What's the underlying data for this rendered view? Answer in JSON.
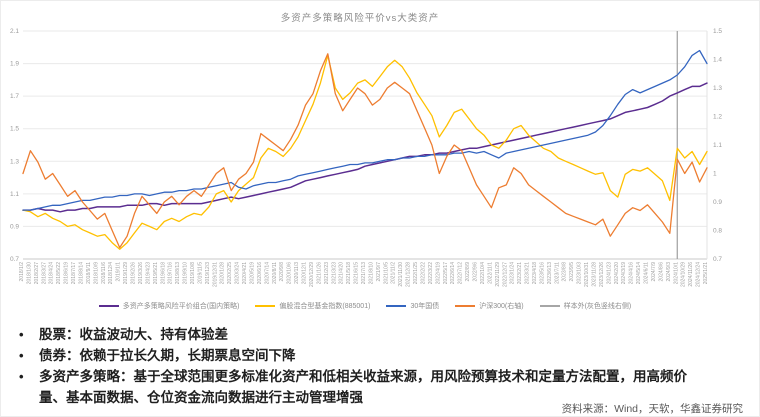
{
  "chart": {
    "title": "多资产多策略风险平价vs大类资产",
    "left_axis_ticks": [
      "2.1",
      "1.9",
      "1.7",
      "1.5",
      "1.3",
      "1.1",
      "0.9",
      "0.7"
    ],
    "right_axis_ticks": [
      "1.5",
      "1.4",
      "1.3",
      "1.2",
      "1.1",
      "1",
      "0.9",
      "0.8",
      "0.7"
    ],
    "legend": [
      {
        "label": "多资产多策略风险平价组合(国内策略)",
        "color": "#5B2D90"
      },
      {
        "label": "偏股混合型基金指数(885001)",
        "color": "#FFC000"
      },
      {
        "label": "30年国债",
        "color": "#3465C0"
      },
      {
        "label": "沪深300(右轴)",
        "color": "#ED7D31"
      },
      {
        "label": "样本外(灰色竖线右侧)",
        "color": "#A6A6A6"
      }
    ]
  },
  "chart_data": {
    "type": "line",
    "title": "多资产多策略风险平价vs大类资产",
    "x_axis": {
      "start": {
        "year": 2018,
        "month": 1,
        "day": 2
      },
      "step_days": 28,
      "count": 93
    },
    "left_axis": {
      "min": 0.7,
      "max": 2.1,
      "tick_step": 0.2
    },
    "right_axis": {
      "min": 0.7,
      "max": 1.5,
      "tick_step": 0.1
    },
    "out_of_sample_index": 88,
    "out_of_sample_color": "#9e9e9e",
    "grid": true,
    "series": [
      {
        "name": "多资产多策略风险平价组合(国内策略)",
        "axis": "left",
        "color": "#5B2D90",
        "width": 1.5,
        "values": [
          1.0,
          1.0,
          1.01,
          1.0,
          1.0,
          0.99,
          1.0,
          1.0,
          1.01,
          1.01,
          1.02,
          1.02,
          1.02,
          1.02,
          1.03,
          1.03,
          1.03,
          1.04,
          1.04,
          1.03,
          1.04,
          1.04,
          1.04,
          1.04,
          1.04,
          1.05,
          1.06,
          1.07,
          1.08,
          1.07,
          1.08,
          1.09,
          1.1,
          1.11,
          1.12,
          1.13,
          1.14,
          1.16,
          1.18,
          1.19,
          1.2,
          1.21,
          1.22,
          1.23,
          1.24,
          1.25,
          1.27,
          1.28,
          1.29,
          1.3,
          1.31,
          1.32,
          1.33,
          1.33,
          1.34,
          1.34,
          1.35,
          1.35,
          1.36,
          1.37,
          1.38,
          1.38,
          1.39,
          1.4,
          1.41,
          1.42,
          1.43,
          1.44,
          1.45,
          1.46,
          1.47,
          1.48,
          1.49,
          1.5,
          1.51,
          1.52,
          1.53,
          1.54,
          1.55,
          1.56,
          1.58,
          1.6,
          1.61,
          1.62,
          1.63,
          1.65,
          1.67,
          1.7,
          1.72,
          1.74,
          1.76,
          1.76,
          1.78
        ]
      },
      {
        "name": "偏股混合型基金指数(885001)",
        "axis": "left",
        "color": "#FFC000",
        "width": 1.3,
        "values": [
          1.0,
          0.99,
          0.96,
          0.98,
          0.95,
          0.93,
          0.9,
          0.91,
          0.88,
          0.86,
          0.84,
          0.85,
          0.8,
          0.76,
          0.8,
          0.86,
          0.92,
          0.9,
          0.88,
          0.93,
          0.95,
          0.93,
          0.96,
          0.98,
          0.97,
          1.02,
          1.1,
          1.12,
          1.05,
          1.12,
          1.16,
          1.2,
          1.32,
          1.38,
          1.36,
          1.33,
          1.38,
          1.45,
          1.55,
          1.65,
          1.78,
          1.95,
          1.75,
          1.68,
          1.72,
          1.78,
          1.8,
          1.76,
          1.82,
          1.88,
          1.92,
          1.88,
          1.81,
          1.72,
          1.65,
          1.58,
          1.45,
          1.52,
          1.6,
          1.62,
          1.56,
          1.5,
          1.46,
          1.4,
          1.38,
          1.43,
          1.5,
          1.52,
          1.46,
          1.42,
          1.38,
          1.36,
          1.32,
          1.3,
          1.28,
          1.26,
          1.24,
          1.22,
          1.23,
          1.12,
          1.08,
          1.22,
          1.25,
          1.24,
          1.26,
          1.22,
          1.18,
          1.06,
          1.38,
          1.32,
          1.36,
          1.28,
          1.36
        ]
      },
      {
        "name": "30年国债",
        "axis": "left",
        "color": "#3465C0",
        "width": 1.3,
        "values": [
          1.0,
          1.0,
          1.01,
          1.02,
          1.03,
          1.03,
          1.04,
          1.05,
          1.06,
          1.06,
          1.07,
          1.08,
          1.08,
          1.09,
          1.09,
          1.1,
          1.1,
          1.09,
          1.1,
          1.11,
          1.11,
          1.12,
          1.12,
          1.13,
          1.13,
          1.14,
          1.15,
          1.16,
          1.17,
          1.14,
          1.13,
          1.15,
          1.16,
          1.17,
          1.17,
          1.18,
          1.19,
          1.21,
          1.22,
          1.23,
          1.24,
          1.25,
          1.26,
          1.27,
          1.28,
          1.28,
          1.29,
          1.29,
          1.3,
          1.31,
          1.31,
          1.32,
          1.32,
          1.33,
          1.33,
          1.34,
          1.34,
          1.34,
          1.35,
          1.35,
          1.36,
          1.35,
          1.36,
          1.34,
          1.32,
          1.35,
          1.36,
          1.37,
          1.38,
          1.39,
          1.4,
          1.41,
          1.42,
          1.43,
          1.44,
          1.45,
          1.46,
          1.48,
          1.52,
          1.58,
          1.65,
          1.71,
          1.74,
          1.72,
          1.74,
          1.76,
          1.78,
          1.8,
          1.83,
          1.88,
          1.95,
          1.98,
          1.9
        ]
      },
      {
        "name": "沪深300(右轴)",
        "axis": "right",
        "color": "#ED7D31",
        "width": 1.3,
        "values": [
          1.0,
          1.08,
          1.04,
          0.98,
          1.0,
          0.96,
          0.92,
          0.94,
          0.9,
          0.87,
          0.84,
          0.86,
          0.8,
          0.74,
          0.78,
          0.86,
          0.92,
          0.89,
          0.86,
          0.9,
          0.92,
          0.89,
          0.92,
          0.94,
          0.92,
          0.96,
          1.0,
          1.02,
          0.94,
          0.98,
          1.0,
          1.04,
          1.14,
          1.12,
          1.1,
          1.08,
          1.12,
          1.17,
          1.24,
          1.28,
          1.36,
          1.42,
          1.28,
          1.22,
          1.26,
          1.3,
          1.28,
          1.24,
          1.26,
          1.3,
          1.32,
          1.3,
          1.28,
          1.22,
          1.16,
          1.1,
          1.0,
          1.06,
          1.1,
          1.08,
          1.02,
          0.96,
          0.92,
          0.88,
          0.95,
          0.96,
          1.02,
          1.0,
          0.96,
          0.94,
          0.92,
          0.9,
          0.88,
          0.86,
          0.85,
          0.84,
          0.83,
          0.82,
          0.84,
          0.78,
          0.82,
          0.86,
          0.88,
          0.87,
          0.89,
          0.86,
          0.83,
          0.79,
          1.05,
          1.0,
          1.04,
          0.97,
          1.02
        ]
      }
    ]
  },
  "bullets": [
    "股票：收益波动大、持有体验差",
    "债券：依赖于拉长久期，长期票息空间下降",
    "多资产多策略：基于全球范围更多标准化资产和低相关收益来源，用风险预算技术和定量方法配置，用高频价量、基本面数据、仓位资金流向数据进行主动管理增强"
  ],
  "source": "资料来源：Wind，天软，华鑫证券研究"
}
